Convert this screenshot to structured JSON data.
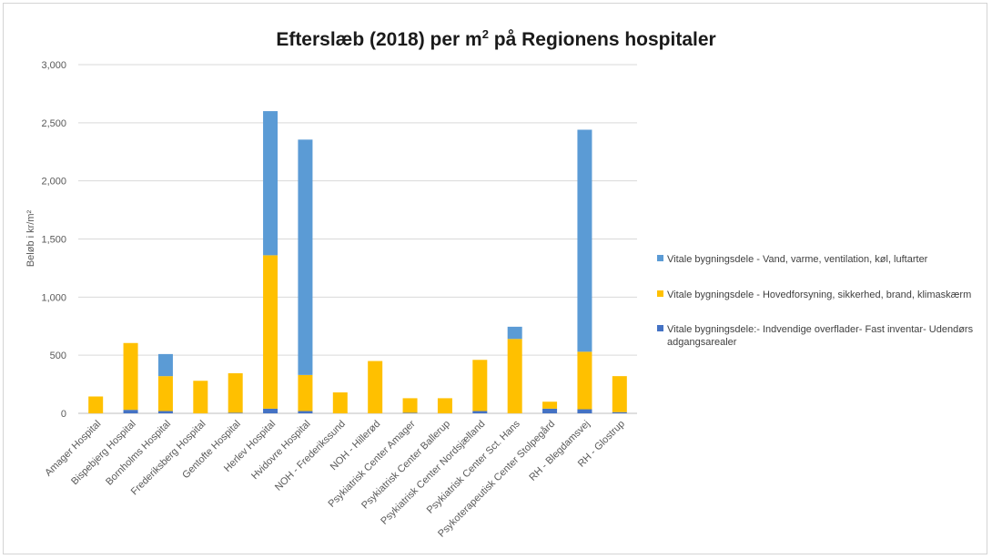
{
  "chart_data": {
    "type": "bar",
    "stacked": true,
    "title": "Efterslæb (2018) per m",
    "title_sup": "2",
    "title_tail": " på Regionens hospitaler",
    "ylabel": "Beløb i kr/m²",
    "xlabel": "",
    "ylim": [
      0,
      3000
    ],
    "yticks": [
      0,
      500,
      1000,
      1500,
      2000,
      2500,
      3000
    ],
    "ytick_labels": [
      "0",
      "500",
      "1,000",
      "1,500",
      "2,000",
      "2,500",
      "3,000"
    ],
    "grid": true,
    "legend_position": "right",
    "categories": [
      "Amager Hospital",
      "Bispebjerg Hospital",
      "Bornholms Hospital",
      "Frederiksberg Hospital",
      "Gentofte Hospital",
      "Herlev Hospital",
      "Hvidovre Hospital",
      "NOH - Frederikssund",
      "NOH - Hillerød",
      "Psykiatrisk Center Amager",
      "Psykiatrisk Center Ballerup",
      "Psykiatrisk Center Nordsjælland",
      "Psykiatrisk Center Sct. Hans",
      "Psykoterapeutisk Center Stolpegård",
      "RH - Blegdamsvej",
      "RH - Glostrup"
    ],
    "series": [
      {
        "name": "Vitale bygningsdele:- Indvendige overflader- Fast inventar- Udendørs adgangsarealer",
        "legend_lines": [
          "Vitale bygningsdele:- Indvendige overflader- Fast inventar- Udendørs",
          "adgangsarealer"
        ],
        "color": "#4472c4",
        "values": [
          0,
          30,
          20,
          0,
          5,
          40,
          20,
          0,
          0,
          5,
          0,
          20,
          0,
          40,
          35,
          10
        ]
      },
      {
        "name": "Vitale bygningsdele - Hovedforsyning, sikkerhed, brand, klimaskærm",
        "legend_lines": [
          "Vitale bygningsdele - Hovedforsyning, sikkerhed, brand, klimaskærm"
        ],
        "color": "#ffc000",
        "values": [
          145,
          575,
          300,
          280,
          340,
          1320,
          310,
          180,
          450,
          125,
          130,
          440,
          640,
          60,
          495,
          310
        ]
      },
      {
        "name": "Vitale bygningsdele - Vand, varme, ventilation, køl, luftarter",
        "legend_lines": [
          "Vitale bygningsdele - Vand, varme, ventilation, køl, luftarter"
        ],
        "color": "#5b9bd5",
        "values": [
          0,
          0,
          190,
          0,
          0,
          1240,
          2025,
          0,
          0,
          0,
          0,
          0,
          105,
          0,
          1910,
          0
        ]
      }
    ]
  }
}
